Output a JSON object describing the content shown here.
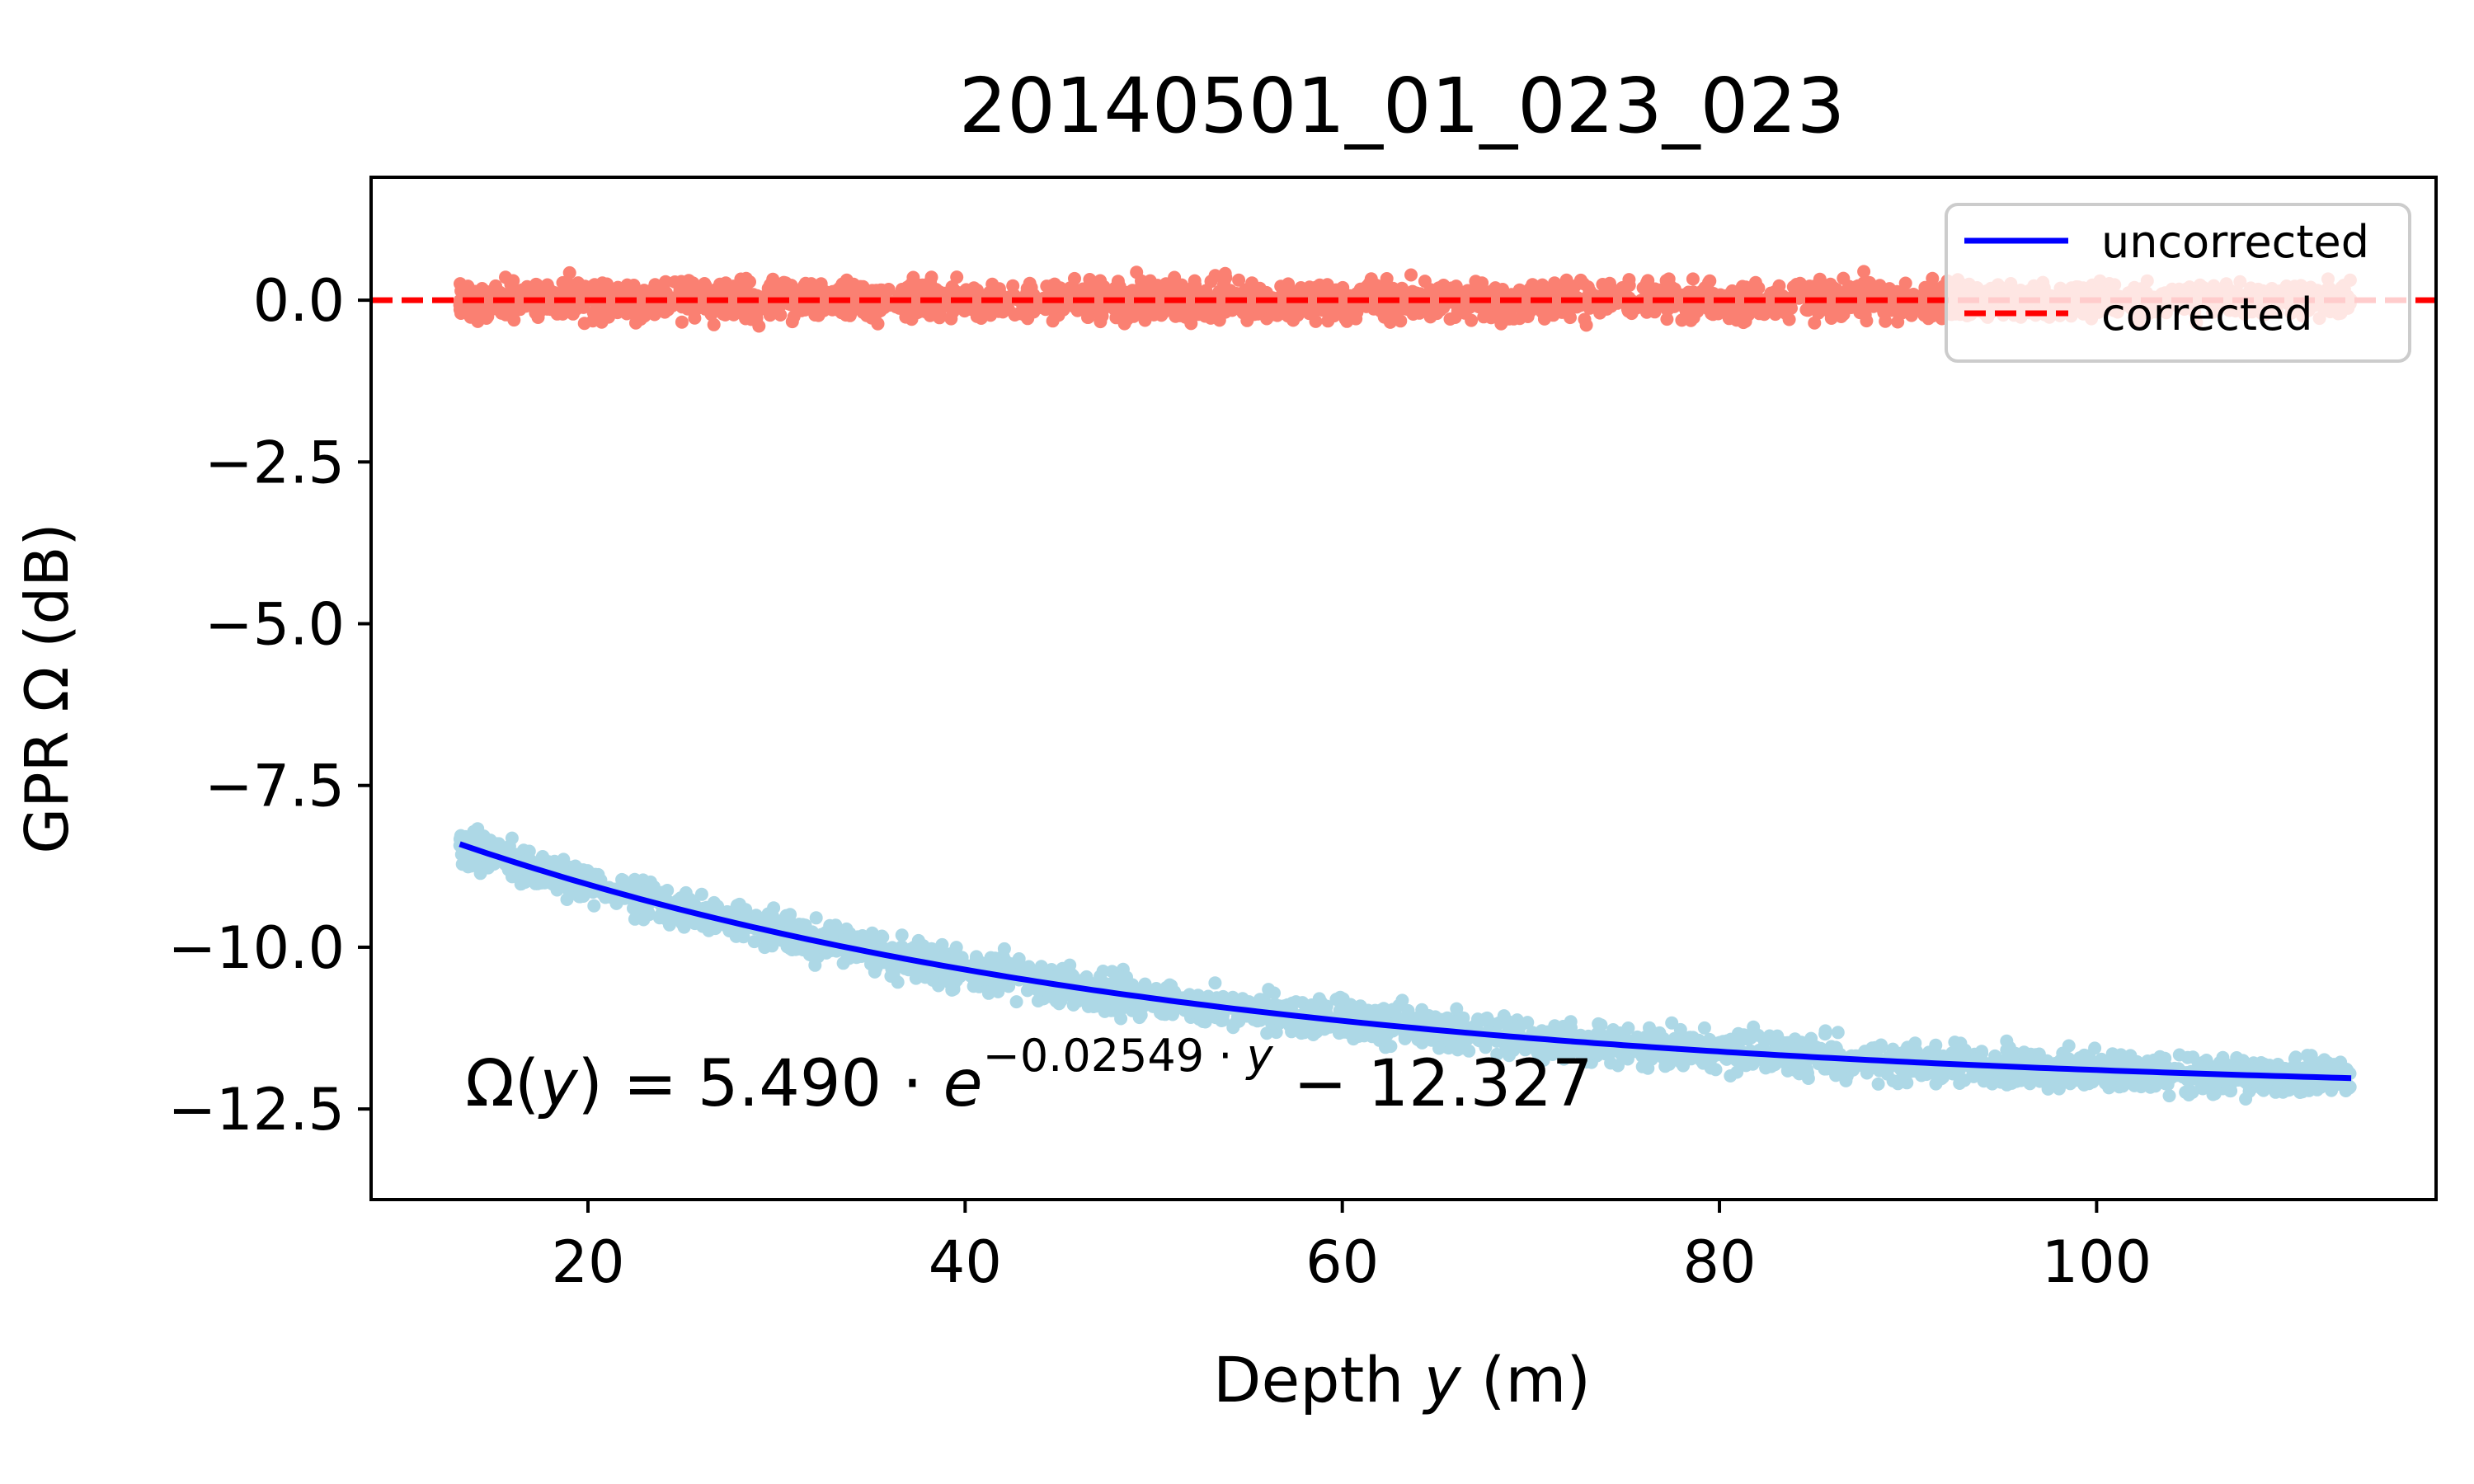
{
  "chart_data": {
    "type": "scatter",
    "title": "20140501_01_023_023",
    "xlabel_prefix": "Depth ",
    "xlabel_var": "y",
    "xlabel_suffix": " (m)",
    "ylabel": "GPR Ω (dB)",
    "xlim": [
      8.5,
      118
    ],
    "ylim": [
      -13.9,
      1.9
    ],
    "x_ticks": [
      20,
      40,
      60,
      80,
      100
    ],
    "x_tick_labels": [
      "20",
      "40",
      "60",
      "80",
      "100"
    ],
    "y_ticks": [
      0.0,
      -2.5,
      -5.0,
      -7.5,
      -10.0,
      -12.5
    ],
    "y_tick_labels": [
      "0.0",
      "−2.5",
      "−5.0",
      "−7.5",
      "−10.0",
      "−12.5"
    ],
    "grid": false,
    "legend_position": "top-right",
    "series": [
      {
        "name": "uncorrected",
        "kind": "fit-line",
        "color": "#0000ff",
        "fit": {
          "a": 5.49,
          "b": -0.02549,
          "c": -12.327
        },
        "x_range": [
          13.2,
          113.5
        ]
      },
      {
        "name": "corrected",
        "kind": "reference-line",
        "color": "#ff0000",
        "y": 0.0
      }
    ],
    "scatter_uncorrected": {
      "color": "#add8e6",
      "x_range": [
        13.2,
        113.5
      ],
      "band_halfwidth": 0.5,
      "description_free": true
    },
    "scatter_corrected": {
      "color": "#fa8072",
      "x_range": [
        13.2,
        113.5
      ],
      "center": 0.0,
      "band_halfwidth": 0.5
    },
    "annotation": {
      "lhs": "Ω(",
      "var": "y",
      "mid": ") = 5.490 · ",
      "e": "e",
      "exponent": "−0.02549 · ",
      "exponent_var": "y",
      "rhs": " − 12.327",
      "x": 13.5,
      "y": -12.45
    }
  }
}
